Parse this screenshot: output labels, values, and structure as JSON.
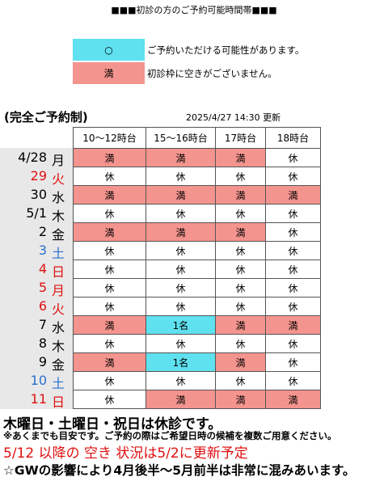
{
  "title": "■■■初診の方のご予約可能時間帯■■■",
  "legend": [
    {
      "symbol": "○",
      "text": "ご予約いただける可能性があります。",
      "color": "#5fe1f0"
    },
    {
      "symbol": "満",
      "text": "初診枠に空きがございません。",
      "color": "#f4948e"
    }
  ],
  "note": "(完全ご予約制)",
  "updated": "2025/4/27 14:30 更新",
  "table": {
    "header": [
      "10～12時台",
      "15～16時台",
      "17時台",
      "18時台"
    ],
    "rows": [
      {
        "date": "4/28",
        "weekday": "月",
        "color": "#000",
        "cells": [
          {
            "text": "満",
            "color": "#f4948e"
          },
          {
            "text": "満",
            "color": "#f4948e"
          },
          {
            "text": "満",
            "color": "#f4948e"
          },
          {
            "text": "休",
            "color": "#fff"
          }
        ]
      },
      {
        "date": "29",
        "weekday": "火",
        "color": "#e01010",
        "cells": [
          {
            "text": "休",
            "color": "#fff"
          },
          {
            "text": "休",
            "color": "#fff"
          },
          {
            "text": "休",
            "color": "#fff"
          },
          {
            "text": "休",
            "color": "#fff"
          }
        ]
      },
      {
        "date": "30",
        "weekday": "水",
        "color": "#000",
        "cells": [
          {
            "text": "満",
            "color": "#f4948e"
          },
          {
            "text": "満",
            "color": "#f4948e"
          },
          {
            "text": "満",
            "color": "#f4948e"
          },
          {
            "text": "満",
            "color": "#f4948e"
          }
        ]
      },
      {
        "date": "5/1",
        "weekday": "木",
        "color": "#000",
        "cells": [
          {
            "text": "休",
            "color": "#fff"
          },
          {
            "text": "休",
            "color": "#fff"
          },
          {
            "text": "休",
            "color": "#fff"
          },
          {
            "text": "休",
            "color": "#fff"
          }
        ]
      },
      {
        "date": "2",
        "weekday": "金",
        "color": "#000",
        "cells": [
          {
            "text": "満",
            "color": "#f4948e"
          },
          {
            "text": "満",
            "color": "#f4948e"
          },
          {
            "text": "満",
            "color": "#f4948e"
          },
          {
            "text": "休",
            "color": "#fff"
          }
        ]
      },
      {
        "date": "3",
        "weekday": "土",
        "color": "#2a6fcf",
        "cells": [
          {
            "text": "休",
            "color": "#fff"
          },
          {
            "text": "休",
            "color": "#fff"
          },
          {
            "text": "休",
            "color": "#fff"
          },
          {
            "text": "休",
            "color": "#fff"
          }
        ]
      },
      {
        "date": "4",
        "weekday": "日",
        "color": "#e01010",
        "cells": [
          {
            "text": "休",
            "color": "#fff"
          },
          {
            "text": "休",
            "color": "#fff"
          },
          {
            "text": "休",
            "color": "#fff"
          },
          {
            "text": "休",
            "color": "#fff"
          }
        ]
      },
      {
        "date": "5",
        "weekday": "月",
        "color": "#e01010",
        "cells": [
          {
            "text": "休",
            "color": "#fff"
          },
          {
            "text": "休",
            "color": "#fff"
          },
          {
            "text": "休",
            "color": "#fff"
          },
          {
            "text": "休",
            "color": "#fff"
          }
        ]
      },
      {
        "date": "6",
        "weekday": "火",
        "color": "#e01010",
        "cells": [
          {
            "text": "休",
            "color": "#fff"
          },
          {
            "text": "休",
            "color": "#fff"
          },
          {
            "text": "休",
            "color": "#fff"
          },
          {
            "text": "休",
            "color": "#fff"
          }
        ]
      },
      {
        "date": "7",
        "weekday": "水",
        "color": "#000",
        "cells": [
          {
            "text": "満",
            "color": "#f4948e"
          },
          {
            "text": "1名",
            "color": "#5fe1f0"
          },
          {
            "text": "満",
            "color": "#f4948e"
          },
          {
            "text": "満",
            "color": "#f4948e"
          }
        ]
      },
      {
        "date": "8",
        "weekday": "木",
        "color": "#000",
        "cells": [
          {
            "text": "休",
            "color": "#fff"
          },
          {
            "text": "休",
            "color": "#fff"
          },
          {
            "text": "休",
            "color": "#fff"
          },
          {
            "text": "休",
            "color": "#fff"
          }
        ]
      },
      {
        "date": "9",
        "weekday": "金",
        "color": "#000",
        "cells": [
          {
            "text": "満",
            "color": "#f4948e"
          },
          {
            "text": "1名",
            "color": "#5fe1f0"
          },
          {
            "text": "満",
            "color": "#f4948e"
          },
          {
            "text": "休",
            "color": "#fff"
          }
        ]
      },
      {
        "date": "10",
        "weekday": "土",
        "color": "#2a6fcf",
        "cells": [
          {
            "text": "休",
            "color": "#fff"
          },
          {
            "text": "休",
            "color": "#fff"
          },
          {
            "text": "休",
            "color": "#fff"
          },
          {
            "text": "休",
            "color": "#fff"
          }
        ]
      },
      {
        "date": "11",
        "weekday": "日",
        "color": "#e01010",
        "cells": [
          {
            "text": "休",
            "color": "#fff"
          },
          {
            "text": "満",
            "color": "#f4948e"
          },
          {
            "text": "満",
            "color": "#f4948e"
          },
          {
            "text": "満",
            "color": "#f4948e"
          }
        ]
      }
    ]
  },
  "footer": {
    "closed": "木曜日・土曜日・祝日は休診です。",
    "caution": "※あくまでも目安です。ご予約の際はご希望日時の候補を複数ご用意ください。",
    "update": "5/12 以降の 空き 状況は5/2に更新予定",
    "gw": "☆GWの影響により4月後半～5月前半は非常に混みあいます。"
  }
}
